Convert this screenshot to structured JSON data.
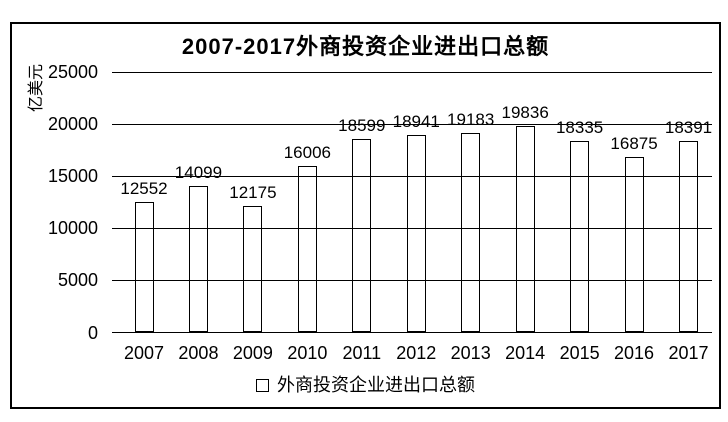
{
  "chart_data": {
    "type": "bar",
    "title": "2007-2017外商投资企业进出口总额",
    "ylabel": "亿美元",
    "xlabel": "",
    "categories": [
      "2007",
      "2008",
      "2009",
      "2010",
      "2011",
      "2012",
      "2013",
      "2014",
      "2015",
      "2016",
      "2017"
    ],
    "series": [
      {
        "name": "外商投资企业进出口总额",
        "values": [
          12552,
          14099,
          12175,
          16006,
          18599,
          18941,
          19183,
          19836,
          18335,
          16875,
          18391
        ]
      }
    ],
    "data_labels_visible": true,
    "ylim": [
      0,
      25000
    ],
    "yticks": [
      0,
      5000,
      10000,
      15000,
      20000,
      25000
    ],
    "grid": true,
    "legend_position": "bottom",
    "bar_style": {
      "fill": "transparent",
      "border": "#000000"
    }
  },
  "legend": {
    "marker_icon": "open-square",
    "label": "外商投资企业进出口总额"
  },
  "colors": {
    "foreground": "#000000",
    "background": "#ffffff"
  }
}
